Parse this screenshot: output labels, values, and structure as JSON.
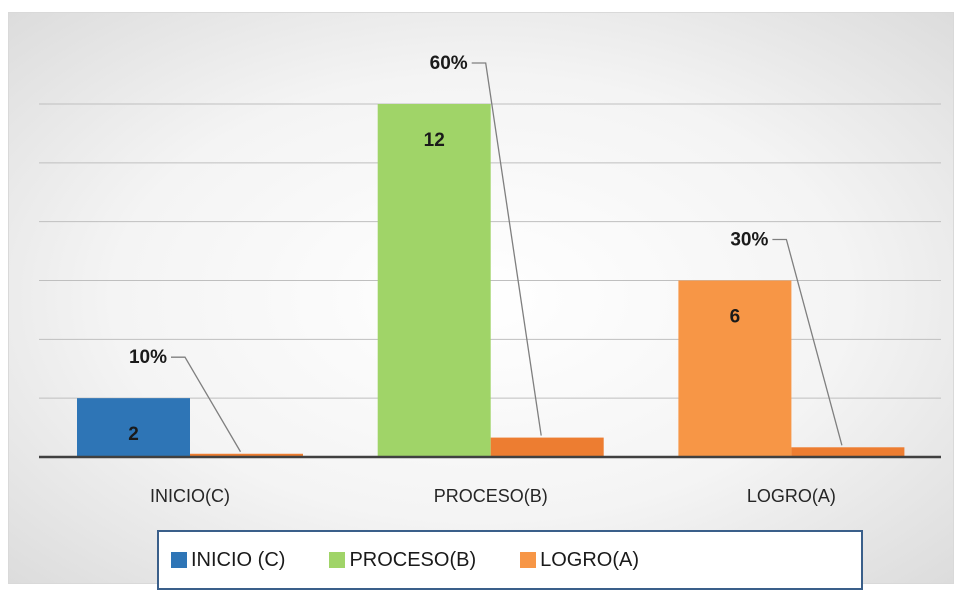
{
  "chart_data": {
    "type": "bar",
    "categories": [
      "INICIO(C)",
      "PROCESO(B)",
      "LOGRO(A)"
    ],
    "series": [
      {
        "name": "INICIO (C)",
        "color": "#2e75b6",
        "values": [
          2,
          0,
          0
        ]
      },
      {
        "name": "PROCESO(B)",
        "color": "#a0d468",
        "values": [
          0,
          12,
          6
        ]
      },
      {
        "name": "LOGRO(A)",
        "color": "#f79646",
        "values": [
          0.1,
          0.6,
          0.3
        ]
      }
    ],
    "value_labels": [
      "2",
      "12",
      "6"
    ],
    "percent_labels": [
      "10%",
      "60%",
      "30%"
    ],
    "ylim": [
      0,
      12
    ],
    "gridlines": true,
    "legend_position": "bottom"
  }
}
